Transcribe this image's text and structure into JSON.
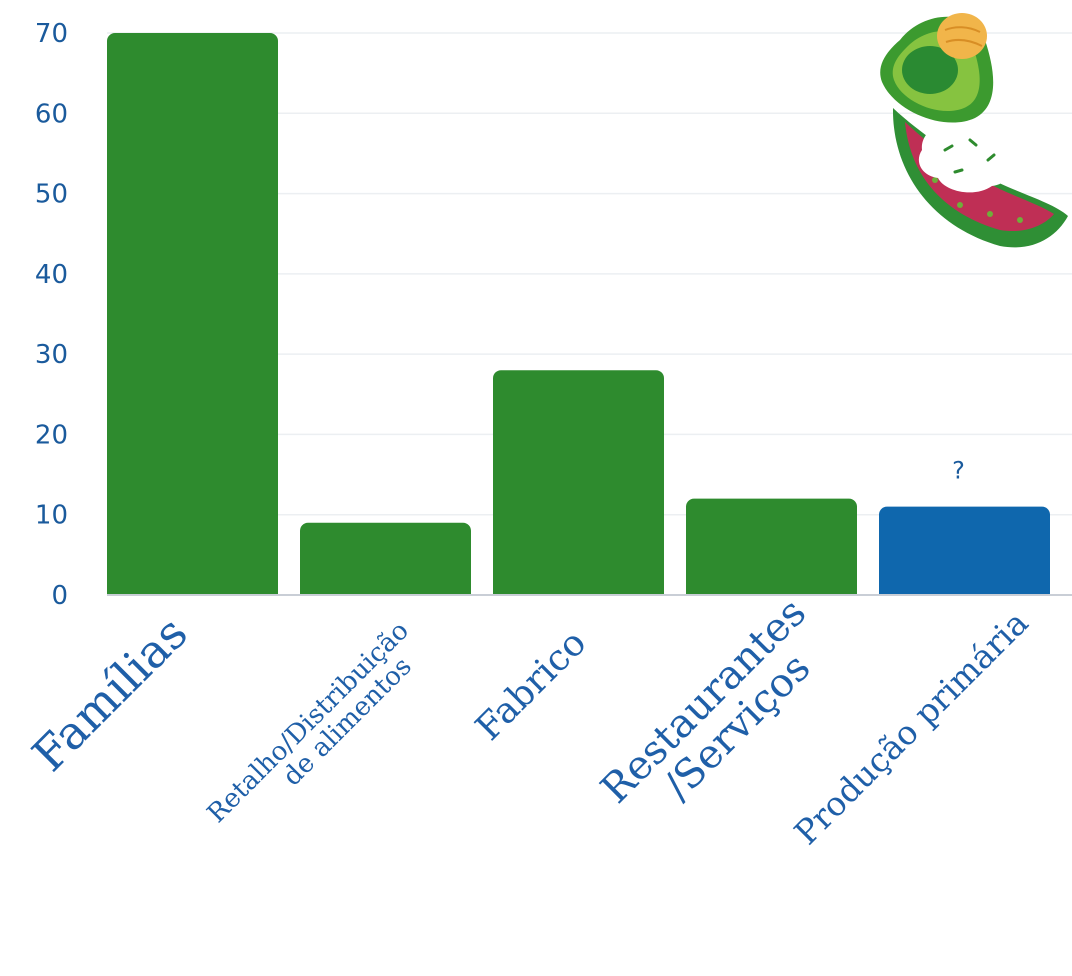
{
  "chart_data": {
    "type": "bar",
    "categories": [
      "Famílias",
      "Retalho/Distribuição de alimentos",
      "Fabrico",
      "Restaurantes /Serviços",
      "Produção primária"
    ],
    "category_lines": [
      [
        "Famílias"
      ],
      [
        "Retalho/Distribuição",
        "de alimentos"
      ],
      [
        "Fabrico"
      ],
      [
        "Restaurantes",
        "/Serviços"
      ],
      [
        "Produção primária"
      ]
    ],
    "values": [
      70,
      9,
      28,
      12,
      11
    ],
    "bar_colors": [
      "#2e8b2e",
      "#2e8b2e",
      "#2e8b2e",
      "#2e8b2e",
      "#0f67ad"
    ],
    "annotations": [
      {
        "category": "Produção primária",
        "text": "?"
      }
    ],
    "yticks": [
      0,
      10,
      20,
      30,
      40,
      50,
      60,
      70
    ],
    "ylim": [
      0,
      70
    ],
    "grid": true,
    "title": "",
    "xlabel": "",
    "ylabel": ""
  },
  "decoration": {
    "icon": "avocado-watermelon-icon"
  }
}
